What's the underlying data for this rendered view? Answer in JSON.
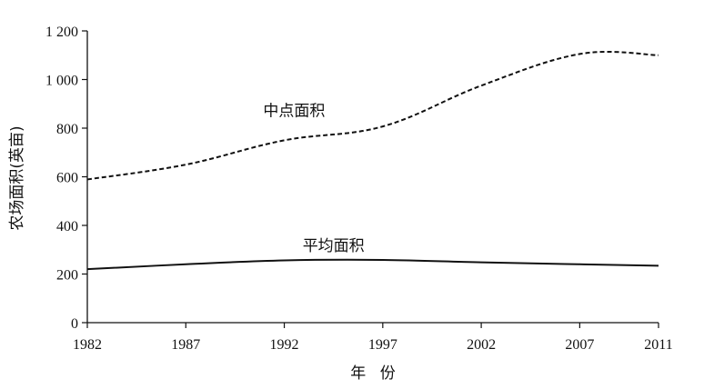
{
  "chart_data": {
    "type": "line",
    "title": "",
    "xlabel": "年 份",
    "ylabel": "农场面积(英亩)",
    "x": [
      1982,
      1987,
      1992,
      1997,
      2002,
      2007,
      2011
    ],
    "xlim": [
      1982,
      2011
    ],
    "ylim": [
      0,
      1200
    ],
    "xticks": [
      "1982",
      "1987",
      "1992",
      "1997",
      "2002",
      "2007",
      "2011"
    ],
    "yticks": [
      {
        "value": 0,
        "label": "0"
      },
      {
        "value": 200,
        "label": "200"
      },
      {
        "value": 400,
        "label": "400"
      },
      {
        "value": 600,
        "label": "600"
      },
      {
        "value": 800,
        "label": "800"
      },
      {
        "value": 1000,
        "label": "1 000"
      },
      {
        "value": 1200,
        "label": "1 200"
      }
    ],
    "grid": false,
    "legend": "none",
    "series": [
      {
        "name": "中点面积",
        "style": "dashed",
        "color": "#111111",
        "values": [
          589,
          650,
          750,
          807,
          975,
          1105,
          1100
        ]
      },
      {
        "name": "平均面积",
        "style": "solid",
        "color": "#111111",
        "values": [
          220,
          240,
          256,
          258,
          248,
          240,
          234
        ]
      }
    ]
  }
}
